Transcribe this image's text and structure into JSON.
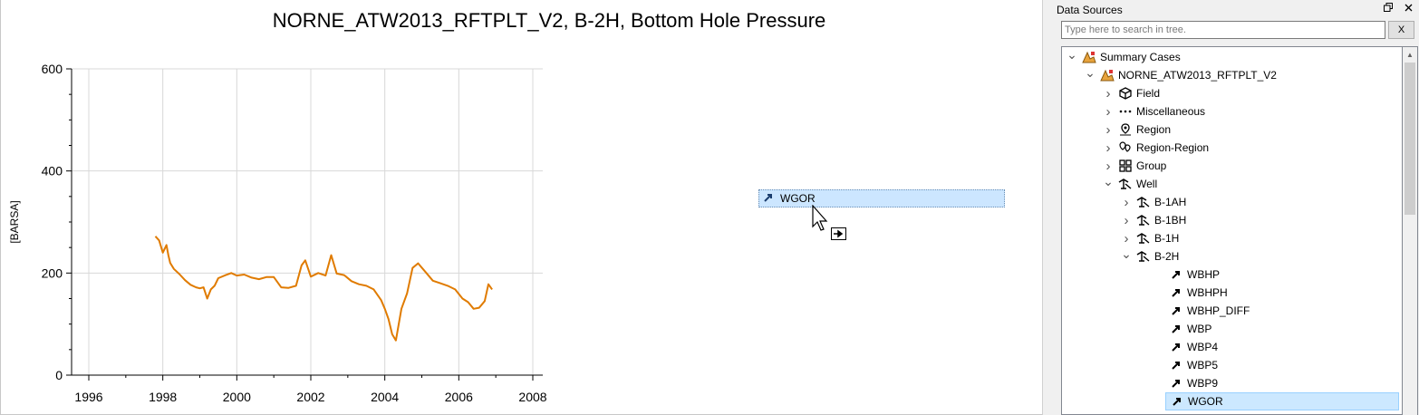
{
  "plot": {
    "title": "NORNE_ATW2013_RFTPLT_V2, B-2H, Bottom Hole Pressure"
  },
  "chart_data": {
    "type": "line",
    "title": "NORNE_ATW2013_RFTPLT_V2, B-2H, Bottom Hole Pressure",
    "xlabel": "",
    "ylabel": "[BARSA]",
    "xlim": [
      1996,
      2008
    ],
    "ylim": [
      0,
      600
    ],
    "x_ticks": [
      "1996",
      "1998",
      "2000",
      "2002",
      "2004",
      "2006",
      "2008"
    ],
    "y_ticks": [
      "0",
      "200",
      "400",
      "600"
    ],
    "grid": true,
    "series": [
      {
        "color": "#e07b00",
        "x": [
          1997.8,
          1997.9,
          1998.0,
          1998.1,
          1998.15,
          1998.2,
          1998.3,
          1998.45,
          1998.6,
          1998.75,
          1998.9,
          1999.0,
          1999.1,
          1999.2,
          1999.3,
          1999.4,
          1999.5,
          1999.7,
          1999.85,
          2000.0,
          2000.2,
          2000.4,
          2000.6,
          2000.8,
          2001.0,
          2001.2,
          2001.4,
          2001.6,
          2001.75,
          2001.85,
          2002.0,
          2002.2,
          2002.4,
          2002.55,
          2002.7,
          2002.9,
          2003.1,
          2003.3,
          2003.5,
          2003.7,
          2003.9,
          2004.0,
          2004.1,
          2004.2,
          2004.3,
          2004.45,
          2004.6,
          2004.75,
          2004.9,
          2005.1,
          2005.3,
          2005.5,
          2005.7,
          2005.9,
          2006.1,
          2006.25,
          2006.4,
          2006.55,
          2006.7,
          2006.8,
          2006.9
        ],
        "y": [
          272,
          264,
          240,
          255,
          235,
          220,
          208,
          198,
          186,
          177,
          172,
          170,
          172,
          150,
          168,
          175,
          190,
          196,
          200,
          195,
          197,
          191,
          188,
          192,
          192,
          172,
          171,
          175,
          215,
          225,
          193,
          200,
          195,
          235,
          199,
          196,
          184,
          178,
          175,
          168,
          147,
          130,
          110,
          80,
          68,
          130,
          160,
          210,
          219,
          202,
          185,
          180,
          175,
          168,
          150,
          143,
          130,
          132,
          145,
          178,
          168
        ]
      }
    ]
  },
  "drag": {
    "chip_label": "WGOR",
    "chip_icon": "arrow-ne-icon",
    "cursor_icon": "arrow-cursor-icon",
    "badge_icon": "move-badge-icon"
  },
  "data_sources": {
    "title": "Data Sources",
    "float_icon": "float-window-icon",
    "close_icon": "close-icon",
    "search_placeholder": "Type here to search in tree.",
    "clear_label": "X",
    "tree": [
      {
        "label": "Summary Cases",
        "icon": "summary-cases-icon",
        "expander": "expanded",
        "depth": 0
      },
      {
        "label": "NORNE_ATW2013_RFTPLT_V2",
        "icon": "summary-case-icon",
        "expander": "expanded",
        "depth": 1
      },
      {
        "label": "Field",
        "icon": "field-icon",
        "expander": "collapsed",
        "depth": 2
      },
      {
        "label": "Miscellaneous",
        "icon": "dots-icon",
        "expander": "collapsed",
        "depth": 2
      },
      {
        "label": "Region",
        "icon": "region-icon",
        "expander": "collapsed",
        "depth": 2
      },
      {
        "label": "Region-Region",
        "icon": "region-region-icon",
        "expander": "collapsed",
        "depth": 2
      },
      {
        "label": "Group",
        "icon": "group-icon",
        "expander": "collapsed",
        "depth": 2
      },
      {
        "label": "Well",
        "icon": "well-icon",
        "expander": "expanded",
        "depth": 2
      },
      {
        "label": "B-1AH",
        "icon": "well-icon",
        "expander": "collapsed",
        "depth": 3
      },
      {
        "label": "B-1BH",
        "icon": "well-icon",
        "expander": "collapsed",
        "depth": 3
      },
      {
        "label": "B-1H",
        "icon": "well-icon",
        "expander": "collapsed",
        "depth": 3
      },
      {
        "label": "B-2H",
        "icon": "well-icon",
        "expander": "expanded",
        "depth": 3
      },
      {
        "label": "WBHP",
        "icon": "vector-icon",
        "expander": "none",
        "depth": 4
      },
      {
        "label": "WBHPH",
        "icon": "vector-icon",
        "expander": "none",
        "depth": 4
      },
      {
        "label": "WBHP_DIFF",
        "icon": "vector-icon",
        "expander": "none",
        "depth": 4
      },
      {
        "label": "WBP",
        "icon": "vector-icon",
        "expander": "none",
        "depth": 4
      },
      {
        "label": "WBP4",
        "icon": "vector-icon",
        "expander": "none",
        "depth": 4
      },
      {
        "label": "WBP5",
        "icon": "vector-icon",
        "expander": "none",
        "depth": 4
      },
      {
        "label": "WBP9",
        "icon": "vector-icon",
        "expander": "none",
        "depth": 4
      },
      {
        "label": "WGOR",
        "icon": "vector-icon",
        "expander": "none",
        "depth": 4,
        "selected": true
      }
    ]
  }
}
